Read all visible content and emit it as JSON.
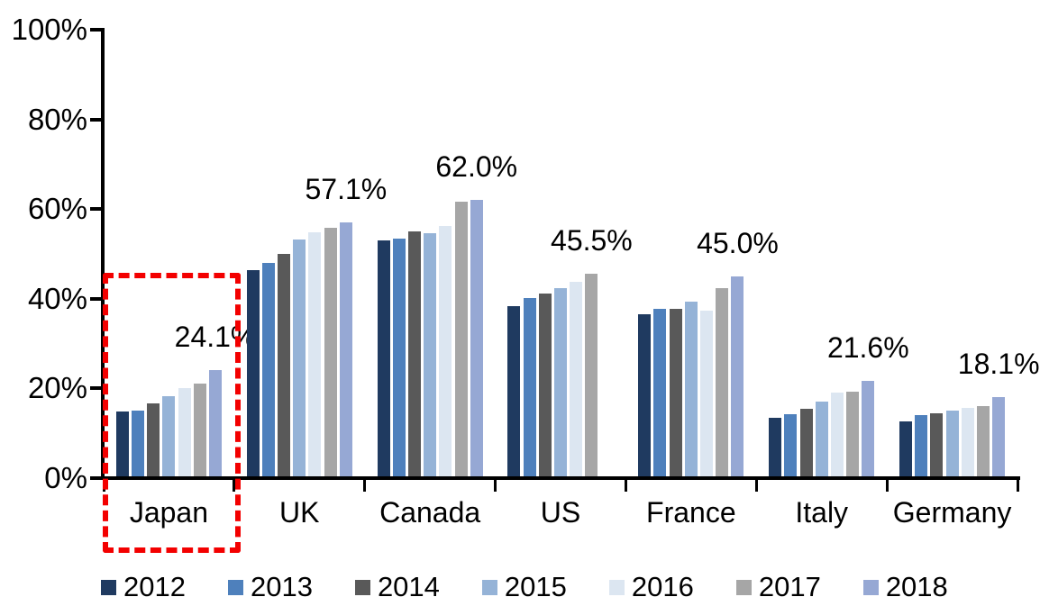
{
  "chart_data": {
    "type": "bar",
    "title": "",
    "xlabel": "",
    "ylabel": "",
    "ylim": [
      0,
      100
    ],
    "grid": false,
    "legend_position": "bottom",
    "y_ticks": [
      "0%",
      "20%",
      "40%",
      "60%",
      "80%",
      "100%"
    ],
    "categories": [
      "Japan",
      "UK",
      "Canada",
      "US",
      "France",
      "Italy",
      "Germany"
    ],
    "series": [
      {
        "name": "2012",
        "color": "#1F3A60",
        "values": [
          14.8,
          46.4,
          53.1,
          38.3,
          36.6,
          13.4,
          12.6
        ]
      },
      {
        "name": "2013",
        "color": "#4E80BC",
        "values": [
          15.0,
          47.9,
          53.5,
          40.1,
          37.8,
          14.2,
          14.1
        ]
      },
      {
        "name": "2014",
        "color": "#595959",
        "values": [
          16.7,
          50.0,
          55.0,
          41.2,
          37.7,
          15.5,
          14.5
        ]
      },
      {
        "name": "2015",
        "color": "#95B3D7",
        "values": [
          18.2,
          53.3,
          54.7,
          42.4,
          39.4,
          17.0,
          15.0
        ]
      },
      {
        "name": "2016",
        "color": "#DCE6F1",
        "values": [
          20.1,
          54.8,
          56.2,
          43.8,
          37.4,
          19.1,
          15.6
        ]
      },
      {
        "name": "2017",
        "color": "#A6A6A6",
        "values": [
          21.1,
          55.8,
          61.6,
          45.5,
          42.4,
          19.3,
          16.1
        ]
      },
      {
        "name": "2018",
        "color": "#96A8D4",
        "values": [
          24.1,
          57.1,
          62.0,
          null,
          45.0,
          21.6,
          18.1
        ]
      }
    ],
    "data_labels": [
      "24.1%",
      "57.1%",
      "62.0%",
      "45.5%",
      "45.0%",
      "21.6%",
      "18.1%"
    ],
    "highlight": {
      "category": "Japan",
      "color": "#F30000",
      "style": "dashed-box"
    }
  }
}
